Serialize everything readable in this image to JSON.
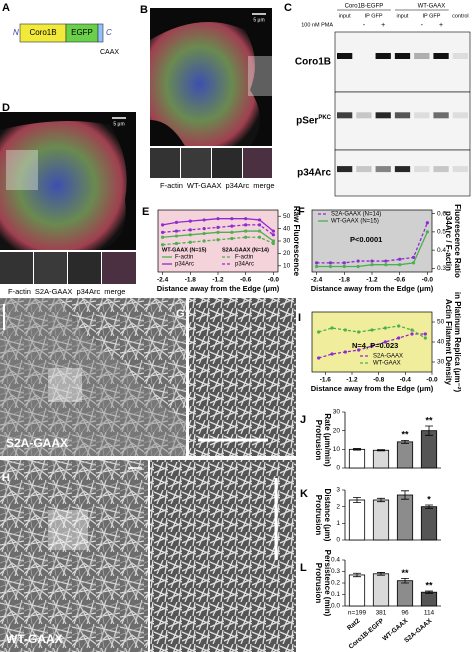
{
  "panel_letters": [
    "A",
    "B",
    "C",
    "D",
    "E",
    "F",
    "G",
    "H",
    "I",
    "J",
    "K",
    "L"
  ],
  "diagram": {
    "n": "N",
    "coro": "Coro1B",
    "egfp": "EGFP",
    "c": "C",
    "caax": "CAAX"
  },
  "image_b": {
    "scale": "5 μm",
    "channels": [
      "F-actin",
      "WT-GAAX",
      "p34Arc",
      "merge"
    ]
  },
  "image_d": {
    "scale": "5 μm",
    "channels": [
      "F-actin",
      "S2A-GAAX",
      "p34Arc",
      "merge"
    ]
  },
  "channel_colors": [
    "#d81b3c",
    "#3fae3f",
    "#2b3fd6",
    "#000000"
  ],
  "blot": {
    "groups": [
      "Coro1B-EGFP",
      "WT-GAAX"
    ],
    "lanes": [
      "input",
      "IP GFP",
      "input",
      "IP GFP",
      "control"
    ],
    "treatment": "100 nM PMA",
    "signs": [
      "-",
      "+",
      "-",
      "+"
    ],
    "rows": [
      "Coro1B",
      "pSer",
      "p34Arc"
    ],
    "row_sup": "PKC"
  },
  "em": {
    "g_label": "S2A-GAAX",
    "h_label": "WT-GAAX"
  },
  "charts": [
    {
      "type": "line",
      "x": [
        -2.4,
        -2.1,
        -1.8,
        -1.5,
        -1.2,
        -0.9,
        -0.6,
        -0.3,
        0
      ],
      "xlim": [
        -2.5,
        0.1
      ],
      "xticks": [
        -2.4,
        -1.8,
        -1.2,
        -0.6,
        {
          "value": 0,
          "label": "-0.0"
        }
      ],
      "ylim": [
        5,
        55
      ],
      "yticks": [
        10,
        20,
        30,
        40,
        50
      ],
      "xlabel": "Distance away from the Edge (μm)",
      "ylabel": [
        "Raw Fluorescence"
      ],
      "background": "#f4d3da",
      "legend_groups": [
        "WT-GAAX (N=15)",
        "S2A-GAAX (N=14)"
      ],
      "series": [
        {
          "name": "F-actin",
          "group": 0,
          "color": "#4caf50",
          "dashed": false,
          "values": [
            33,
            34,
            35,
            36,
            37,
            37,
            38,
            38,
            30
          ]
        },
        {
          "name": "p34Arc",
          "group": 0,
          "color": "#8e2bd0",
          "dashed": false,
          "values": [
            43,
            45,
            46,
            47,
            48,
            48,
            48,
            47,
            38
          ]
        },
        {
          "name": "F-actin",
          "group": 1,
          "color": "#4caf50",
          "dashed": true,
          "values": [
            27,
            28,
            29,
            30,
            31,
            32,
            33,
            33,
            28
          ]
        },
        {
          "name": "p34Arc",
          "group": 1,
          "color": "#8e2bd0",
          "dashed": true,
          "values": [
            37,
            38,
            39,
            40,
            41,
            42,
            43,
            43,
            35
          ]
        }
      ]
    },
    {
      "type": "line",
      "x": [
        -2.4,
        -2.1,
        -1.8,
        -1.5,
        -1.2,
        -0.9,
        -0.6,
        -0.3,
        0
      ],
      "xlim": [
        -2.5,
        0.1
      ],
      "xticks": [
        -2.4,
        -1.8,
        -1.2,
        -0.6,
        {
          "value": 0,
          "label": "-0.0"
        }
      ],
      "ylim": [
        0.28,
        0.62
      ],
      "yticks": [
        0.3,
        0.4,
        0.5,
        0.6
      ],
      "xlabel": "Distance away from the Edge (μm)",
      "ylabel": [
        "p34Arc / F-actin",
        "Fluorescence Ratio"
      ],
      "background": "#d0d0d0",
      "annotation": "P<0.0001",
      "series": [
        {
          "name": "S2A-GAAX (N=14)",
          "color": "#8e2bd0",
          "dashed": true,
          "values": [
            0.33,
            0.33,
            0.33,
            0.34,
            0.34,
            0.34,
            0.35,
            0.36,
            0.55
          ]
        },
        {
          "name": "WT-GAAX (N=15)",
          "color": "#4caf50",
          "dashed": false,
          "values": [
            0.31,
            0.31,
            0.31,
            0.31,
            0.32,
            0.32,
            0.32,
            0.33,
            0.5
          ]
        }
      ]
    },
    {
      "type": "line",
      "x": [
        -1.7,
        -1.5,
        -1.3,
        -1.1,
        -0.9,
        -0.7,
        -0.5,
        -0.3,
        -0.1
      ],
      "xlim": [
        -1.8,
        0
      ],
      "xticks": [
        -1.6,
        -1.2,
        -0.8,
        -0.4,
        {
          "value": 0,
          "label": "-0.0"
        }
      ],
      "ylim": [
        25,
        55
      ],
      "yticks": [
        30,
        40,
        50
      ],
      "xlabel": "Distance away from the Edge (μm)",
      "ylabel": [
        "Actin Filament Density",
        "in Platinum Replica (μm⁻²)"
      ],
      "background": "#f0ee9c",
      "annotation": "N=4, P=0.023",
      "series": [
        {
          "name": "S2A-GAAX",
          "color": "#8e2bd0",
          "dashed": true,
          "values": [
            32,
            34,
            35,
            36,
            38,
            40,
            42,
            44,
            44
          ]
        },
        {
          "name": "WT-GAAX",
          "color": "#4caf50",
          "dashed": true,
          "values": [
            45,
            47,
            46,
            45,
            46,
            47,
            48,
            46,
            42
          ]
        }
      ]
    },
    {
      "type": "bar",
      "values": [
        10,
        9.5,
        14,
        20
      ],
      "errors": [
        0.4,
        0.3,
        0.8,
        2.5
      ],
      "colors": [
        "#ffffff",
        "#d9d9d9",
        "#8c8c8c",
        "#555555"
      ],
      "significance": [
        null,
        null,
        "**",
        "**"
      ],
      "ylim": [
        0,
        30
      ],
      "yticks": [
        0,
        10,
        20,
        30
      ],
      "ylabel": [
        "Protrusion",
        "Rate (μm/min)"
      ]
    },
    {
      "type": "bar",
      "values": [
        2.4,
        2.4,
        2.7,
        2.0
      ],
      "errors": [
        0.15,
        0.1,
        0.25,
        0.1
      ],
      "colors": [
        "#ffffff",
        "#d9d9d9",
        "#8c8c8c",
        "#555555"
      ],
      "significance": [
        null,
        null,
        null,
        "*"
      ],
      "ylim": [
        0,
        3
      ],
      "yticks": [
        0,
        1,
        2,
        3
      ],
      "ylabel": [
        "Protrusion",
        "Distance (μm)"
      ]
    },
    {
      "type": "bar",
      "values": [
        0.27,
        0.28,
        0.22,
        0.12
      ],
      "errors": [
        0.015,
        0.012,
        0.02,
        0.01
      ],
      "colors": [
        "#ffffff",
        "#d9d9d9",
        "#8c8c8c",
        "#555555"
      ],
      "significance": [
        null,
        null,
        "**",
        "**"
      ],
      "ylim": [
        0,
        0.4
      ],
      "yticks": [
        {
          "value": 0,
          "label": "0.0"
        },
        0.1,
        0.2,
        0.3,
        0.4
      ],
      "ylabel": [
        "Protrusion",
        "Persistence (min)"
      ],
      "n_labels": [
        "n=199",
        "381",
        "96",
        "114"
      ],
      "categories": [
        "Rat2",
        "Coro1B-EGFP",
        "WT-GAAX",
        "S2A-GAAX"
      ]
    }
  ]
}
